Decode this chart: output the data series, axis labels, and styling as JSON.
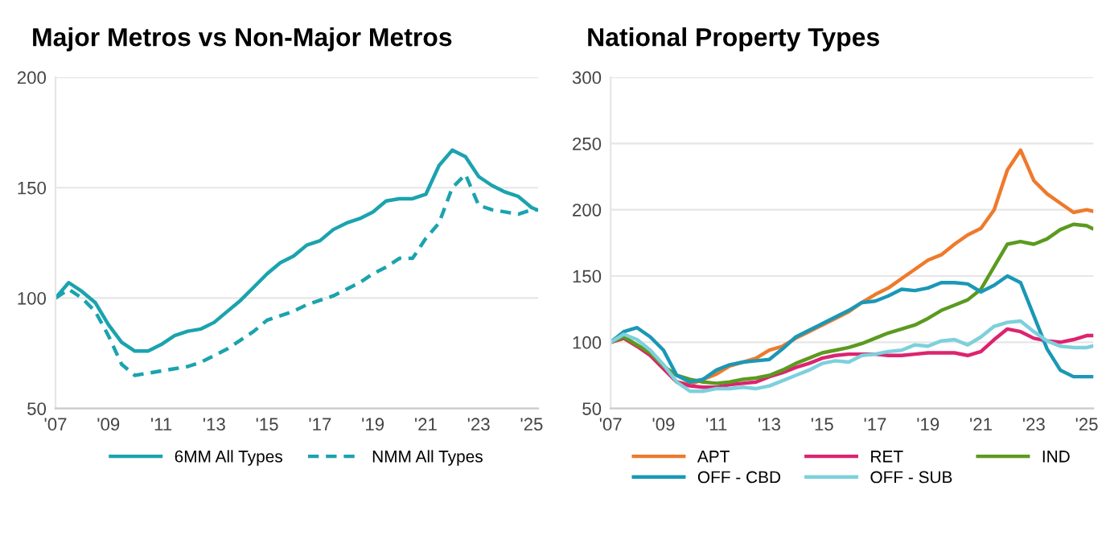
{
  "chart_data": [
    {
      "type": "line",
      "title": "Major Metros vs Non-Major Metros",
      "x": [
        2007,
        2007.5,
        2008,
        2008.5,
        2009,
        2009.5,
        2010,
        2010.5,
        2011,
        2011.5,
        2012,
        2012.5,
        2013,
        2013.5,
        2014,
        2014.5,
        2015,
        2015.5,
        2016,
        2016.5,
        2017,
        2017.5,
        2018,
        2018.5,
        2019,
        2019.5,
        2020,
        2020.5,
        2021,
        2021.5,
        2022,
        2022.5,
        2023,
        2023.5,
        2024,
        2024.5,
        2025,
        2025.2
      ],
      "series": [
        {
          "name": "6MM All Types",
          "color": "#1ba3ae",
          "line_style": "solid",
          "values": [
            100,
            107,
            103,
            98,
            88,
            80,
            76,
            76,
            79,
            83,
            85,
            86,
            89,
            94,
            99,
            105,
            111,
            116,
            119,
            124,
            126,
            131,
            134,
            136,
            139,
            144,
            145,
            145,
            147,
            160,
            167,
            164,
            155,
            151,
            148,
            146,
            141,
            140
          ]
        },
        {
          "name": "NMM All Types",
          "color": "#1ba3ae",
          "line_style": "dashed",
          "values": [
            100,
            104,
            100,
            94,
            83,
            70,
            65,
            66,
            67,
            68,
            69,
            71,
            74,
            77,
            81,
            85,
            90,
            92,
            94,
            97,
            99,
            101,
            104,
            107,
            111,
            114,
            118,
            118,
            127,
            134,
            150,
            156,
            142,
            140,
            139,
            138,
            140,
            140
          ]
        }
      ],
      "xlim": [
        2007,
        2025.25
      ],
      "xticks": [
        {
          "value": 2007,
          "label": "'07"
        },
        {
          "value": 2009,
          "label": "'09"
        },
        {
          "value": 2011,
          "label": "'11"
        },
        {
          "value": 2013,
          "label": "'13"
        },
        {
          "value": 2015,
          "label": "'15"
        },
        {
          "value": 2017,
          "label": "'17"
        },
        {
          "value": 2019,
          "label": "'19"
        },
        {
          "value": 2021,
          "label": "'21"
        },
        {
          "value": 2023,
          "label": "'23"
        },
        {
          "value": 2025,
          "label": "'25"
        }
      ],
      "ylim": [
        50,
        200
      ],
      "yticks": [
        50,
        100,
        150,
        200
      ],
      "grid": "y",
      "legend": "bottom"
    },
    {
      "type": "line",
      "title": "National Property Types",
      "x": [
        2007,
        2007.5,
        2008,
        2008.5,
        2009,
        2009.5,
        2010,
        2010.5,
        2011,
        2011.5,
        2012,
        2012.5,
        2013,
        2013.5,
        2014,
        2014.5,
        2015,
        2015.5,
        2016,
        2016.5,
        2017,
        2017.5,
        2018,
        2018.5,
        2019,
        2019.5,
        2020,
        2020.5,
        2021,
        2021.5,
        2022,
        2022.5,
        2023,
        2023.5,
        2024,
        2024.5,
        2025,
        2025.2
      ],
      "series": [
        {
          "name": "APT",
          "color": "#ee7a2c",
          "values": [
            100,
            103,
            97,
            90,
            80,
            70,
            68,
            72,
            76,
            82,
            85,
            88,
            94,
            97,
            103,
            108,
            113,
            118,
            123,
            130,
            136,
            141,
            148,
            155,
            162,
            166,
            174,
            181,
            186,
            200,
            230,
            245,
            222,
            212,
            205,
            198,
            200,
            199
          ]
        },
        {
          "name": "RET",
          "color": "#dc2470",
          "values": [
            100,
            103,
            97,
            90,
            80,
            70,
            67,
            66,
            66,
            68,
            69,
            70,
            74,
            77,
            81,
            84,
            88,
            90,
            91,
            91,
            91,
            90,
            90,
            91,
            92,
            92,
            92,
            90,
            93,
            102,
            110,
            108,
            103,
            101,
            100,
            102,
            105,
            105
          ]
        },
        {
          "name": "IND",
          "color": "#5b9a1f",
          "values": [
            100,
            104,
            98,
            92,
            82,
            75,
            72,
            70,
            69,
            70,
            72,
            73,
            75,
            79,
            84,
            88,
            92,
            94,
            96,
            99,
            103,
            107,
            110,
            113,
            118,
            124,
            128,
            132,
            140,
            157,
            174,
            176,
            174,
            178,
            185,
            189,
            188,
            186
          ]
        },
        {
          "name": "OFF - CBD",
          "color": "#1a98b6",
          "values": [
            100,
            108,
            111,
            104,
            94,
            75,
            70,
            72,
            79,
            83,
            85,
            86,
            87,
            95,
            104,
            109,
            114,
            119,
            124,
            130,
            131,
            135,
            140,
            139,
            141,
            145,
            145,
            144,
            138,
            143,
            150,
            145,
            120,
            95,
            79,
            74,
            74,
            74
          ]
        },
        {
          "name": "OFF - SUB",
          "color": "#7dd0dc",
          "values": [
            100,
            106,
            102,
            94,
            83,
            70,
            63,
            63,
            65,
            65,
            66,
            65,
            67,
            71,
            75,
            79,
            84,
            86,
            85,
            90,
            91,
            93,
            94,
            98,
            97,
            101,
            102,
            98,
            104,
            112,
            115,
            116,
            108,
            101,
            97,
            96,
            96,
            97
          ]
        }
      ],
      "xlim": [
        2007,
        2025.25
      ],
      "xticks": [
        {
          "value": 2007,
          "label": "'07"
        },
        {
          "value": 2009,
          "label": "'09"
        },
        {
          "value": 2011,
          "label": "'11"
        },
        {
          "value": 2013,
          "label": "'13"
        },
        {
          "value": 2015,
          "label": "'15"
        },
        {
          "value": 2017,
          "label": "'17"
        },
        {
          "value": 2019,
          "label": "'19"
        },
        {
          "value": 2021,
          "label": "'21"
        },
        {
          "value": 2023,
          "label": "'23"
        },
        {
          "value": 2025,
          "label": "'25"
        }
      ],
      "ylim": [
        50,
        300
      ],
      "yticks": [
        50,
        100,
        150,
        200,
        250,
        300
      ],
      "grid": "y",
      "legend": "bottom"
    }
  ]
}
